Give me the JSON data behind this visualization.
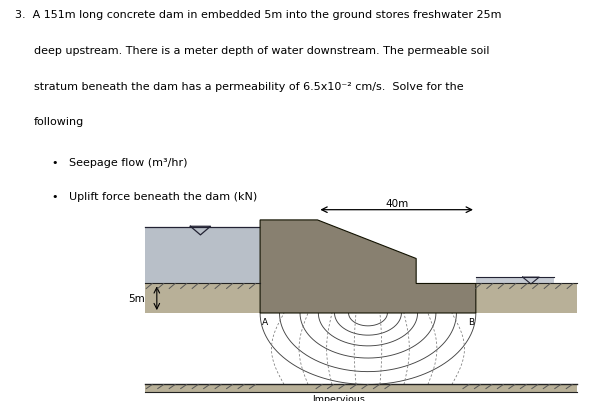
{
  "fig_width": 6.12,
  "fig_height": 4.02,
  "dpi": 100,
  "bg_color": "#ffffff",
  "diagram_bg": "#ddd8c8",
  "text_color": "#000000",
  "bullet1": "Seepage flow (m³/hr)",
  "bullet2": "Uplift force beneath the dam (kN)",
  "label_40m": "40m",
  "label_5m": "5m",
  "label_A": "A",
  "label_B": "B",
  "label_impervious": "Impervious",
  "upstream_water_color": "#b8bfc8",
  "dam_body_color": "#888070",
  "ground_color": "#b8b098",
  "flow_net_color": "#444444",
  "dashed_line_color": "#777777",
  "impervious_color": "#b8b098"
}
